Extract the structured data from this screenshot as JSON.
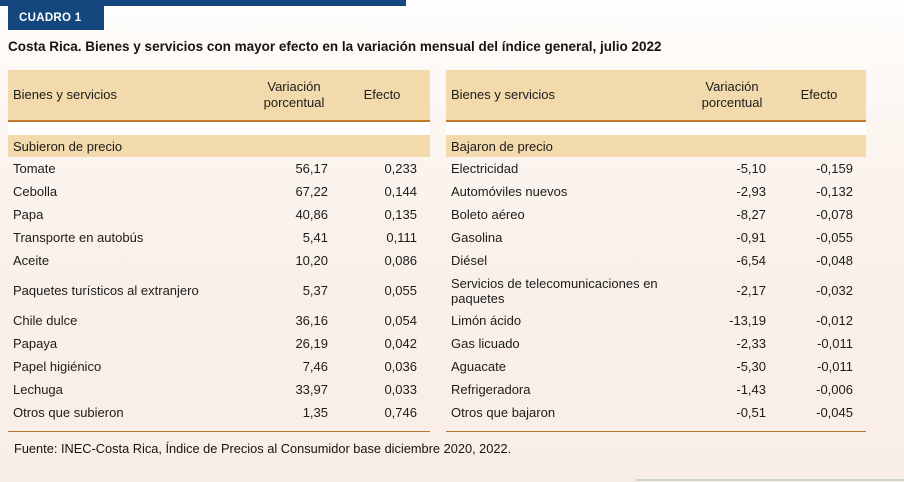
{
  "badge": {
    "label": "CUADRO 1"
  },
  "title": "Costa Rica. Bienes y servicios con mayor efecto en la variación mensual del índice general, julio 2022",
  "colors": {
    "primary_blue": "#14477d",
    "header_beige": "#f2daac",
    "header_border_orange": "#bf7b28",
    "table_bottom_rule": "#b5782f",
    "page_background": "#faf1ea"
  },
  "tables": [
    {
      "columns": {
        "items": "Bienes y servicios",
        "variation": "Variación porcentual",
        "effect": "Efecto"
      },
      "section": "Subieron de precio",
      "rows": [
        {
          "name": "Tomate",
          "variation": "56,17",
          "effect": "0,233"
        },
        {
          "name": "Cebolla",
          "variation": "67,22",
          "effect": "0,144"
        },
        {
          "name": "Papa",
          "variation": "40,86",
          "effect": "0,135"
        },
        {
          "name": "Transporte en autobús",
          "variation": "5,41",
          "effect": "0,111"
        },
        {
          "name": "Aceite",
          "variation": "10,20",
          "effect": "0,086"
        },
        {
          "name": "Paquetes turísticos al extranjero",
          "variation": "5,37",
          "effect": "0,055"
        },
        {
          "name": "Chile dulce",
          "variation": "36,16",
          "effect": "0,054"
        },
        {
          "name": "Papaya",
          "variation": "26,19",
          "effect": "0,042"
        },
        {
          "name": "Papel higiénico",
          "variation": "7,46",
          "effect": "0,036"
        },
        {
          "name": "Lechuga",
          "variation": "33,97",
          "effect": "0,033"
        },
        {
          "name": "Otros que subieron",
          "variation": "1,35",
          "effect": "0,746"
        }
      ]
    },
    {
      "columns": {
        "items": "Bienes y servicios",
        "variation": "Variación porcentual",
        "effect": "Efecto"
      },
      "section": "Bajaron de precio",
      "rows": [
        {
          "name": "Electricidad",
          "variation": "-5,10",
          "effect": "-0,159"
        },
        {
          "name": "Automóviles nuevos",
          "variation": "-2,93",
          "effect": "-0,132"
        },
        {
          "name": "Boleto aéreo",
          "variation": "-8,27",
          "effect": "-0,078"
        },
        {
          "name": "Gasolina",
          "variation": "-0,91",
          "effect": "-0,055"
        },
        {
          "name": "Diésel",
          "variation": "-6,54",
          "effect": "-0,048"
        },
        {
          "name": "Servicios de telecomunicaciones en paquetes",
          "variation": "-2,17",
          "effect": "-0,032"
        },
        {
          "name": "Limón ácido",
          "variation": "-13,19",
          "effect": "-0,012"
        },
        {
          "name": "Gas licuado",
          "variation": "-2,33",
          "effect": "-0,011"
        },
        {
          "name": "Aguacate",
          "variation": "-5,30",
          "effect": "-0,011"
        },
        {
          "name": "Refrigeradora",
          "variation": "-1,43",
          "effect": "-0,006"
        },
        {
          "name": "Otros que bajaron",
          "variation": "-0,51",
          "effect": "-0,045"
        }
      ]
    }
  ],
  "footer": {
    "source": "Fuente: INEC-Costa Rica, Índice de Precios al Consumidor base diciembre 2020, 2022."
  }
}
